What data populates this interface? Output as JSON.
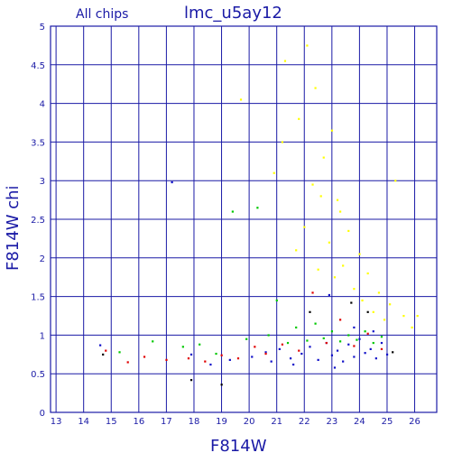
{
  "chart_data": {
    "type": "scatter",
    "title": "lmc_u5ay12",
    "subtitle": "All chips",
    "xlabel": "F814W",
    "ylabel": "F814W chi",
    "xlim": [
      12.8,
      26.8
    ],
    "ylim": [
      0,
      5
    ],
    "x_ticks": [
      13,
      14,
      15,
      16,
      17,
      18,
      19,
      20,
      21,
      22,
      23,
      24,
      25,
      26
    ],
    "y_ticks": [
      "0",
      "0.5",
      "1",
      "1.5",
      "2",
      "2.5",
      "3",
      "3.5",
      "4",
      "4.5",
      "5"
    ],
    "grid": true,
    "series": [
      {
        "color": "#1010c8",
        "points": [
          [
            14.6,
            0.87
          ],
          [
            17.2,
            2.98
          ],
          [
            17.9,
            0.75
          ],
          [
            18.6,
            0.62
          ],
          [
            19.3,
            0.68
          ],
          [
            20.1,
            0.72
          ],
          [
            20.6,
            0.78
          ],
          [
            21.1,
            0.82
          ],
          [
            21.5,
            0.7
          ],
          [
            21.9,
            0.76
          ],
          [
            22.2,
            0.85
          ],
          [
            22.5,
            0.68
          ],
          [
            22.8,
            0.9
          ],
          [
            23.0,
            0.74
          ],
          [
            23.2,
            0.8
          ],
          [
            23.4,
            0.66
          ],
          [
            23.6,
            0.88
          ],
          [
            23.8,
            0.72
          ],
          [
            24.0,
            0.95
          ],
          [
            24.2,
            0.77
          ],
          [
            24.4,
            0.82
          ],
          [
            24.6,
            0.7
          ],
          [
            24.8,
            0.9
          ],
          [
            25.0,
            0.75
          ],
          [
            22.9,
            1.52
          ],
          [
            23.8,
            1.1
          ],
          [
            24.5,
            1.05
          ],
          [
            21.6,
            0.62
          ],
          [
            20.8,
            0.66
          ],
          [
            23.1,
            0.58
          ]
        ]
      },
      {
        "color": "#ffff00",
        "points": [
          [
            19.7,
            4.05
          ],
          [
            20.9,
            3.1
          ],
          [
            21.2,
            3.5
          ],
          [
            21.3,
            4.55
          ],
          [
            21.7,
            2.1
          ],
          [
            21.8,
            3.8
          ],
          [
            22.0,
            2.4
          ],
          [
            22.1,
            4.75
          ],
          [
            22.3,
            2.95
          ],
          [
            22.4,
            4.2
          ],
          [
            22.6,
            2.8
          ],
          [
            22.7,
            3.3
          ],
          [
            22.9,
            2.2
          ],
          [
            23.0,
            3.65
          ],
          [
            23.1,
            1.75
          ],
          [
            23.3,
            2.6
          ],
          [
            23.4,
            1.9
          ],
          [
            23.6,
            2.35
          ],
          [
            23.8,
            1.6
          ],
          [
            24.0,
            2.05
          ],
          [
            24.1,
            1.45
          ],
          [
            24.3,
            1.8
          ],
          [
            24.5,
            1.3
          ],
          [
            24.7,
            1.55
          ],
          [
            24.9,
            1.2
          ],
          [
            25.1,
            1.4
          ],
          [
            25.3,
            3.0
          ],
          [
            25.6,
            1.25
          ],
          [
            25.9,
            1.1
          ],
          [
            26.1,
            1.25
          ],
          [
            23.2,
            2.75
          ],
          [
            22.5,
            1.85
          ]
        ]
      },
      {
        "color": "#00c800",
        "points": [
          [
            15.3,
            0.78
          ],
          [
            16.5,
            0.92
          ],
          [
            17.6,
            0.85
          ],
          [
            18.2,
            0.88
          ],
          [
            18.8,
            0.76
          ],
          [
            19.4,
            2.6
          ],
          [
            19.9,
            0.95
          ],
          [
            20.3,
            2.65
          ],
          [
            20.7,
            1.0
          ],
          [
            21.0,
            1.45
          ],
          [
            21.4,
            0.9
          ],
          [
            21.7,
            1.1
          ],
          [
            22.1,
            0.93
          ],
          [
            22.4,
            1.15
          ],
          [
            22.7,
            0.96
          ],
          [
            23.0,
            1.05
          ],
          [
            23.3,
            0.92
          ],
          [
            23.6,
            1.0
          ],
          [
            23.9,
            0.94
          ],
          [
            24.2,
            1.05
          ],
          [
            24.5,
            0.9
          ],
          [
            24.8,
            0.98
          ]
        ]
      },
      {
        "color": "#e00000",
        "points": [
          [
            14.8,
            0.8
          ],
          [
            15.6,
            0.65
          ],
          [
            16.2,
            0.72
          ],
          [
            17.0,
            0.68
          ],
          [
            17.8,
            0.7
          ],
          [
            18.4,
            0.66
          ],
          [
            19.0,
            0.74
          ],
          [
            19.6,
            0.7
          ],
          [
            20.2,
            0.85
          ],
          [
            20.6,
            0.76
          ],
          [
            21.2,
            0.88
          ],
          [
            21.8,
            0.8
          ],
          [
            22.3,
            1.55
          ],
          [
            22.8,
            0.9
          ],
          [
            23.3,
            1.2
          ],
          [
            23.8,
            0.86
          ],
          [
            24.3,
            1.02
          ],
          [
            24.8,
            0.82
          ]
        ]
      },
      {
        "color": "#000000",
        "points": [
          [
            14.7,
            0.75
          ],
          [
            17.9,
            0.42
          ],
          [
            19.0,
            0.36
          ],
          [
            22.2,
            1.3
          ],
          [
            23.7,
            1.42
          ],
          [
            24.3,
            1.3
          ],
          [
            25.2,
            0.78
          ]
        ]
      }
    ]
  }
}
